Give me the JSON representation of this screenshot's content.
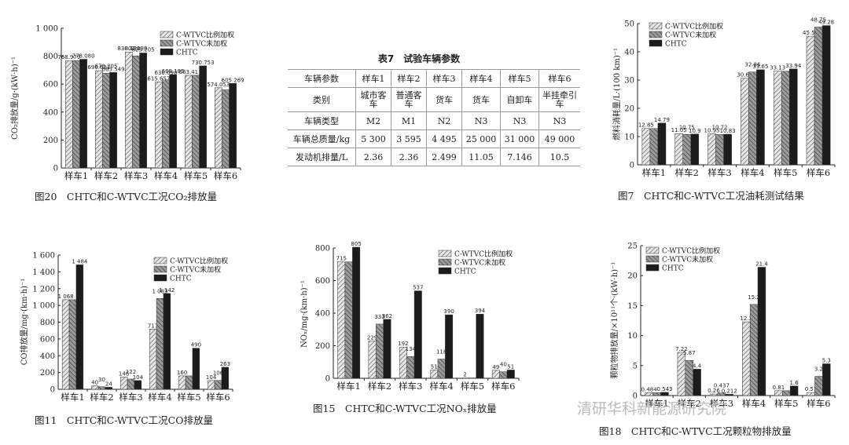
{
  "legend": {
    "prop": "C-WTVC比例加权",
    "unw": "C-WTVC未加权",
    "chtc": "CHTC"
  },
  "categories": [
    "样车1",
    "样车2",
    "样车3",
    "样车4",
    "样车5",
    "样车6"
  ],
  "table": {
    "title": "表7　试验车辆参数",
    "rows": [
      [
        "车辆参数",
        "样车1",
        "样车2",
        "样车3",
        "样车4",
        "样车5",
        "样车6"
      ],
      [
        "类别",
        "城市客车",
        "普通客车",
        "货车",
        "货车",
        "自卸车",
        "半挂牵引车"
      ],
      [
        "车辆类型",
        "M2",
        "M1",
        "N2",
        "N3",
        "N3",
        "N3"
      ],
      [
        "车辆总质量/kg",
        "5 300",
        "3 595",
        "4 495",
        "25 000",
        "31 000",
        "49 000"
      ],
      [
        "发动机排量/L",
        "2.36",
        "2.36",
        "2.499",
        "11.05",
        "7.146",
        "10.5"
      ]
    ]
  },
  "watermark": "清研华科新能源研究院",
  "chart_data": [
    {
      "type": "bar",
      "title": "图20　CHTC和C-WTVC工况CO₂排放量",
      "ylabel": "CO₂排放量/g·(kW·h)⁻¹",
      "ylim": [
        0,
        1000
      ],
      "yticks": [
        "0",
        "200",
        "400",
        "600",
        "800",
        "1 000"
      ],
      "series": [
        {
          "name": "C-WTVC比例加权",
          "values": [
            768.979,
            696.621,
            830.13,
            615.657,
            663.41,
            574.053
          ],
          "labels": [
            "768.979",
            "696.621",
            "830.130",
            "615.657",
            "663.41",
            "574.053"
          ]
        },
        {
          "name": "C-WTVC未加权",
          "values": [
            768.979,
            678.205,
            802.198,
            630.09,
            663.41,
            559.021
          ],
          "labels": [
            "",
            "678.205",
            "802.198",
            "630.090",
            "",
            ""
          ]
        },
        {
          "name": "CHTC",
          "values": [
            778.08,
            683.549,
            823.205,
            668.165,
            730.753,
            605.269
          ],
          "labels": [
            "778.080",
            "683.549",
            "823.205",
            "668.165",
            "730.753",
            "605.269"
          ]
        }
      ]
    },
    {
      "type": "bar",
      "title": "图7　CHTC和C-WTVC工况油耗测试结果",
      "ylabel": "燃料消耗量/L·(100 km)⁻¹",
      "ylim": [
        0,
        50
      ],
      "yticks": [
        "0",
        "10",
        "20",
        "30",
        "40",
        "50"
      ],
      "series": [
        {
          "name": "C-WTVC比例加权",
          "values": [
            12.85,
            11.05,
            10.95,
            30.63,
            33.13,
            45.54
          ],
          "labels": [
            "12.85",
            "11.05",
            "10.95",
            "30.63",
            "33.13",
            "45.54"
          ]
        },
        {
          "name": "C-WTVC未加权",
          "values": [
            12.85,
            10.75,
            10.72,
            32.86,
            33.13,
            48.75
          ],
          "labels": [
            "",
            "10.75",
            "10.72",
            "32.86",
            "",
            "48.75"
          ]
        },
        {
          "name": "CHTC",
          "values": [
            14.79,
            10.9,
            10.83,
            33.65,
            33.94,
            49.28
          ],
          "labels": [
            "14.79",
            "10.9",
            "10.83",
            "33.65",
            "33.94",
            "49.28"
          ]
        }
      ]
    },
    {
      "type": "bar",
      "title": "图11　CHTC和C-WTVC工况CO排放量",
      "ylabel": "CO排放量/mg·(km·h)⁻¹",
      "ylim": [
        0,
        1600
      ],
      "yticks": [
        "0",
        "200",
        "400",
        "600",
        "800",
        "1 000",
        "1 200",
        "1 400",
        "1 600"
      ],
      "series": [
        {
          "name": "C-WTVC比例加权",
          "values": [
            1068,
            40,
            146,
            717,
            160,
            104
          ],
          "labels": [
            "1 068",
            "40",
            "146",
            "717",
            "160",
            "104"
          ]
        },
        {
          "name": "C-WTVC未加权",
          "values": [
            1068,
            30,
            122,
            1083,
            160,
            106
          ],
          "labels": [
            "",
            "30",
            "122",
            "1 083",
            "",
            "106"
          ]
        },
        {
          "name": "CHTC",
          "values": [
            1484,
            24,
            104,
            1142,
            490,
            263
          ],
          "labels": [
            "1 484",
            "24",
            "104",
            "1 142",
            "490",
            "263"
          ]
        }
      ]
    },
    {
      "type": "bar",
      "title": "图15　CHTC和C-WTVC工况NOₓ排放量",
      "ylabel": "NOₓ/mg·(km·h)⁻¹",
      "ylim": [
        0,
        800
      ],
      "yticks": [
        "0",
        "200",
        "400",
        "600",
        "800"
      ],
      "series": [
        {
          "name": "C-WTVC比例加权",
          "values": [
            715,
            229,
            192,
            51,
            2,
            49
          ],
          "labels": [
            "715",
            "229",
            "192",
            "51",
            "2",
            "49"
          ]
        },
        {
          "name": "C-WTVC未加权",
          "values": [
            715,
            333,
            134,
            118,
            2,
            40
          ],
          "labels": [
            "",
            "333",
            "134",
            "118",
            "",
            "40"
          ]
        },
        {
          "name": "CHTC",
          "values": [
            805,
            362,
            537,
            390,
            394,
            51
          ],
          "labels": [
            "805",
            "362",
            "537",
            "390",
            "394",
            "51"
          ]
        }
      ]
    },
    {
      "type": "bar",
      "title": "图18　CHTC和C-WTVC工况颗粒物排放量",
      "ylabel": "颗粒物排放量/×10¹¹个·(kW·h)⁻¹",
      "ylim": [
        0,
        25
      ],
      "yticks": [
        "0",
        "5",
        "10",
        "15",
        "20",
        "25"
      ],
      "series": [
        {
          "name": "C-WTVC比例加权",
          "values": [
            0.484,
            7.22,
            0.26,
            12.3,
            0.81,
            0.51
          ],
          "labels": [
            "0.484",
            "7.22",
            "0.26",
            "12.3",
            "0.81",
            "0.51"
          ]
        },
        {
          "name": "C-WTVC未加权",
          "values": [
            0.484,
            5.87,
            0.437,
            15.2,
            0.81,
            3.2
          ],
          "labels": [
            "",
            "5.87",
            "0.437",
            "15.2",
            "",
            "3.2"
          ]
        },
        {
          "name": "CHTC",
          "values": [
            0.543,
            4.4,
            0.212,
            21.4,
            1.6,
            5.3
          ],
          "labels": [
            "0.543",
            "4.4",
            "0.212",
            "21.4",
            "1.6",
            "5.3"
          ]
        }
      ]
    }
  ]
}
